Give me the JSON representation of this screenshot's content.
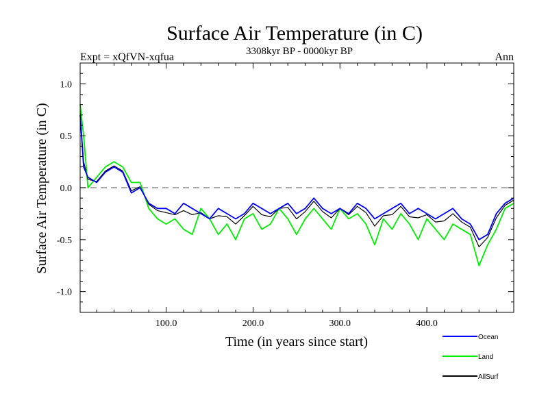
{
  "chart_data": {
    "type": "line",
    "title": "Surface Air Temperature (in C)",
    "subtitle": "3308kyr BP - 0000kyr BP",
    "experiment_label": "Expt = xQfVN-xqfua",
    "season_label": "Ann",
    "xlabel": "Time (in years since start)",
    "ylabel": "Surface Air Temperature (in C)",
    "xlim": [
      1,
      500
    ],
    "ylim": [
      -1.2,
      1.2
    ],
    "x_ticks": [
      100,
      200,
      300,
      400
    ],
    "x_tick_labels": [
      "100.0",
      "200.0",
      "300.0",
      "400.0"
    ],
    "y_ticks": [
      -1.0,
      -0.5,
      0.0,
      0.5,
      1.0
    ],
    "y_tick_labels": [
      "-1.0",
      "-0.5",
      "0.0",
      "0.5",
      "1.0"
    ],
    "reference_line": 0.0,
    "grid": false,
    "legend_position": "bottom-right",
    "series": [
      {
        "name": "Ocean",
        "color": "#0000ff",
        "x": [
          1,
          5,
          10,
          20,
          30,
          40,
          50,
          60,
          70,
          80,
          90,
          100,
          110,
          120,
          130,
          140,
          150,
          160,
          170,
          180,
          190,
          200,
          210,
          220,
          230,
          240,
          250,
          260,
          270,
          280,
          290,
          300,
          310,
          320,
          330,
          340,
          350,
          360,
          370,
          380,
          390,
          400,
          410,
          420,
          430,
          440,
          450,
          460,
          470,
          480,
          490,
          500
        ],
        "values": [
          0.7,
          0.2,
          0.1,
          0.05,
          0.15,
          0.2,
          0.15,
          -0.05,
          0.0,
          -0.15,
          -0.2,
          -0.2,
          -0.25,
          -0.15,
          -0.2,
          -0.25,
          -0.3,
          -0.2,
          -0.25,
          -0.3,
          -0.25,
          -0.15,
          -0.2,
          -0.25,
          -0.2,
          -0.15,
          -0.25,
          -0.2,
          -0.1,
          -0.2,
          -0.25,
          -0.2,
          -0.25,
          -0.15,
          -0.2,
          -0.3,
          -0.25,
          -0.2,
          -0.15,
          -0.25,
          -0.2,
          -0.25,
          -0.3,
          -0.25,
          -0.2,
          -0.3,
          -0.35,
          -0.5,
          -0.45,
          -0.25,
          -0.15,
          -0.1
        ]
      },
      {
        "name": "Land",
        "color": "#00ee00",
        "x": [
          1,
          5,
          10,
          20,
          30,
          40,
          50,
          60,
          70,
          80,
          90,
          100,
          110,
          120,
          130,
          140,
          150,
          160,
          170,
          180,
          190,
          200,
          210,
          220,
          230,
          240,
          250,
          260,
          270,
          280,
          290,
          300,
          310,
          320,
          330,
          340,
          350,
          360,
          370,
          380,
          390,
          400,
          410,
          420,
          430,
          440,
          450,
          460,
          470,
          480,
          490,
          500
        ],
        "values": [
          0.8,
          0.5,
          0.0,
          0.1,
          0.2,
          0.25,
          0.2,
          0.05,
          0.05,
          -0.2,
          -0.3,
          -0.35,
          -0.3,
          -0.4,
          -0.45,
          -0.2,
          -0.3,
          -0.45,
          -0.35,
          -0.5,
          -0.3,
          -0.25,
          -0.4,
          -0.35,
          -0.2,
          -0.3,
          -0.45,
          -0.3,
          -0.2,
          -0.3,
          -0.4,
          -0.2,
          -0.3,
          -0.25,
          -0.35,
          -0.55,
          -0.3,
          -0.4,
          -0.25,
          -0.35,
          -0.5,
          -0.3,
          -0.4,
          -0.5,
          -0.35,
          -0.4,
          -0.45,
          -0.75,
          -0.55,
          -0.4,
          -0.2,
          -0.15
        ]
      },
      {
        "name": "AllSurf",
        "color": "#000000",
        "x": [
          1,
          5,
          10,
          20,
          30,
          40,
          50,
          60,
          70,
          80,
          90,
          100,
          110,
          120,
          130,
          140,
          150,
          160,
          170,
          180,
          190,
          200,
          210,
          220,
          230,
          240,
          250,
          260,
          270,
          280,
          290,
          300,
          310,
          320,
          330,
          340,
          350,
          360,
          370,
          380,
          390,
          400,
          410,
          420,
          430,
          440,
          450,
          460,
          470,
          480,
          490,
          500
        ],
        "values": [
          0.72,
          0.25,
          0.08,
          0.06,
          0.16,
          0.21,
          0.16,
          -0.03,
          0.01,
          -0.16,
          -0.22,
          -0.24,
          -0.26,
          -0.22,
          -0.26,
          -0.24,
          -0.3,
          -0.27,
          -0.28,
          -0.35,
          -0.27,
          -0.18,
          -0.26,
          -0.28,
          -0.2,
          -0.19,
          -0.3,
          -0.23,
          -0.13,
          -0.23,
          -0.29,
          -0.2,
          -0.26,
          -0.18,
          -0.24,
          -0.37,
          -0.27,
          -0.26,
          -0.18,
          -0.28,
          -0.29,
          -0.26,
          -0.33,
          -0.32,
          -0.25,
          -0.33,
          -0.38,
          -0.57,
          -0.48,
          -0.29,
          -0.17,
          -0.12
        ]
      }
    ]
  }
}
